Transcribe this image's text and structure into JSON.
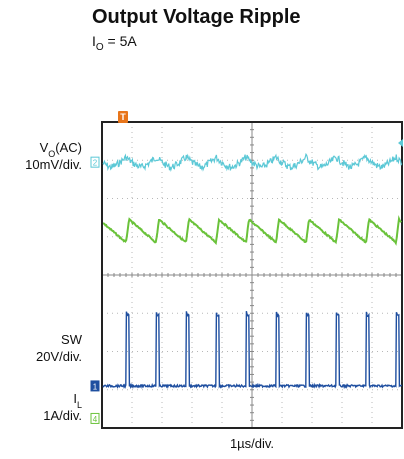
{
  "page": {
    "title": "Output Voltage Ripple",
    "subtitle_base": "I",
    "subtitle_sub": "O",
    "subtitle_rest": " = 5A"
  },
  "chart_data": {
    "type": "line",
    "title": "Output Voltage Ripple",
    "subtitle": "IO = 5A",
    "xlabel": "1µs/div.",
    "x_divisions": 10,
    "y_divisions": 8,
    "grid": true,
    "trigger_marker": "T",
    "channel_markers": [
      "2",
      "1",
      "4"
    ],
    "channel_labels": [
      {
        "main": "V",
        "sub": "O",
        "rest": "(AC)",
        "scale": "10mV/div."
      },
      {
        "main": "SW",
        "sub": "",
        "rest": "",
        "scale": "20V/div."
      },
      {
        "main": "I",
        "sub": "L",
        "rest": "",
        "scale": "1A/div."
      }
    ],
    "series": [
      {
        "name": "VO(AC)",
        "color": "#5bc8d6",
        "scale": "10mV/div."
      },
      {
        "name": "IL",
        "color": "#6ac23a",
        "scale": "1A/div."
      },
      {
        "name": "SW",
        "color": "#1f4fa0",
        "scale": "20V/div."
      }
    ],
    "switching_period_div": 1.0,
    "duty_cycle": 0.1
  }
}
